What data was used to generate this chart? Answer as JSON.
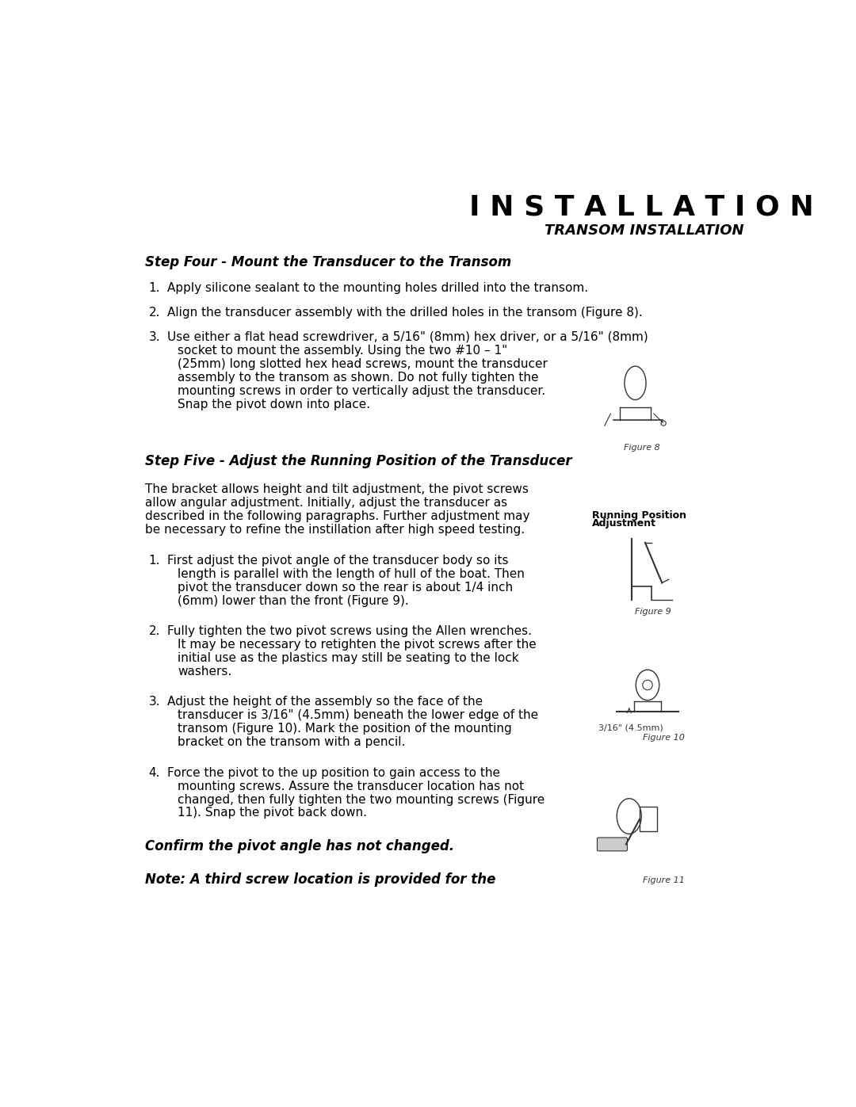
{
  "title": "I N S T A L L A T I O N",
  "subtitle": "TRANSOM INSTALLATION",
  "background_color": "#ffffff",
  "text_color": "#000000",
  "page_width": 10.8,
  "page_height": 13.97,
  "step4_heading": "Step Four - Mount the Transducer to the Transom",
  "step5_heading": "Step Five - Adjust the Running Position of the Transducer",
  "step4_item1": "Apply silicone sealant to the mounting holes drilled into the transom.",
  "step4_item2": "Align the transducer assembly with the drilled holes in the transom (Figure 8).",
  "step4_item3_line1": "Use either a flat head screwdriver, a 5/16\" (8mm) hex driver, or a 5/16\" (8mm)",
  "step4_item3_line2": "socket to mount the assembly. Using the two #10 – 1\"",
  "step4_item3_line3": "(25mm) long slotted hex head screws, mount the transducer",
  "step4_item3_line4": "assembly to the transom as shown. Do not fully tighten the",
  "step4_item3_line5": "mounting screws in order to vertically adjust the transducer.",
  "step4_item3_line6": "Snap the pivot down into place.",
  "step5_intro_line1": "The bracket allows height and tilt adjustment, the pivot screws",
  "step5_intro_line2": "allow angular adjustment. Initially, adjust the transducer as",
  "step5_intro_line3": "described in the following paragraphs. Further adjustment may",
  "step5_intro_line4": "be necessary to refine the instillation after high speed testing.",
  "step5_item1_line1": "First adjust the pivot angle of the transducer body so its",
  "step5_item1_line2": "length is parallel with the length of hull of the boat. Then",
  "step5_item1_line3": "pivot the transducer down so the rear is about 1/4 inch",
  "step5_item1_line4": "(6mm) lower than the front (Figure 9).",
  "step5_item2_line1": "Fully tighten the two pivot screws using the Allen wrenches.",
  "step5_item2_line2": "It may be necessary to retighten the pivot screws after the",
  "step5_item2_line3": "initial use as the plastics may still be seating to the lock",
  "step5_item2_line4": "washers.",
  "step5_item3_line1": "Adjust the height of the assembly so the face of the",
  "step5_item3_line2": "transducer is 3/16\" (4.5mm) beneath the lower edge of the",
  "step5_item3_line3": "transom (Figure 10). Mark the position of the mounting",
  "step5_item3_line4": "bracket on the transom with a pencil.",
  "step5_item4_line1": "Force the pivot to the up position to gain access to the",
  "step5_item4_line2": "mounting screws. Assure the transducer location has not",
  "step5_item4_line3": "changed, then fully tighten the two mounting screws (Figure",
  "step5_item4_line4": "11). Snap the pivot back down.",
  "confirm_text": "Confirm the pivot angle has not changed.",
  "note_text": "Note: A third screw location is provided for the",
  "fig8_caption": "Figure 8",
  "fig9_label1": "Running Position",
  "fig9_label2": "Adjustment",
  "fig9_caption": "Figure 9",
  "fig10_label": "3/16\" (4.5mm)",
  "fig10_caption": "Figure 10",
  "fig11_caption": "Figure 11"
}
